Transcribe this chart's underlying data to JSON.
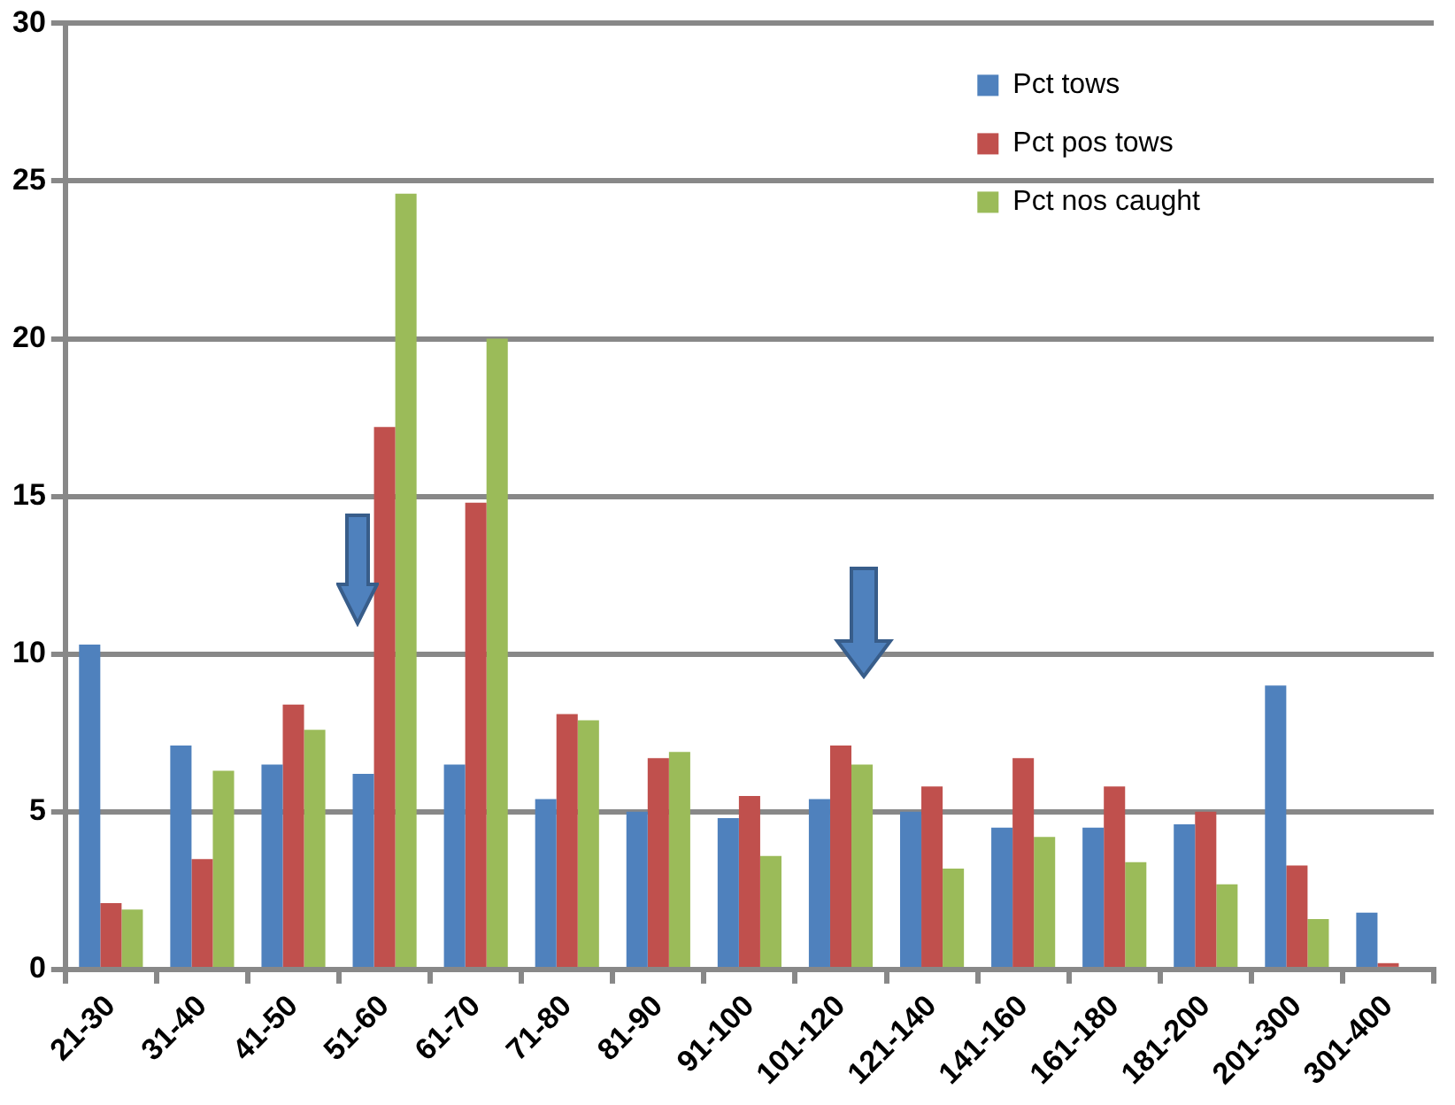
{
  "chart_data": {
    "type": "bar",
    "categories": [
      "21-30",
      "31-40",
      "41-50",
      "51-60",
      "61-70",
      "71-80",
      "81-90",
      "91-100",
      "101-120",
      "121-140",
      "141-160",
      "161-180",
      "181-200",
      "201-300",
      "301-400"
    ],
    "series": [
      {
        "name": "Pct tows",
        "color": "#4f81bd",
        "values": [
          10.3,
          7.1,
          6.5,
          6.2,
          6.5,
          5.4,
          5.0,
          4.8,
          5.4,
          5.0,
          4.5,
          4.5,
          4.6,
          9.0,
          1.8
        ]
      },
      {
        "name": "Pct pos tows",
        "color": "#c0504d",
        "values": [
          2.1,
          3.5,
          8.4,
          17.2,
          14.8,
          8.1,
          6.7,
          5.5,
          7.1,
          5.8,
          6.7,
          5.8,
          5.0,
          3.3,
          0.2
        ]
      },
      {
        "name": "Pct nos caught",
        "color": "#9bbb59",
        "values": [
          1.9,
          6.3,
          7.6,
          24.6,
          20.0,
          7.9,
          6.9,
          3.6,
          6.5,
          3.2,
          4.2,
          3.4,
          2.7,
          1.6,
          0
        ]
      }
    ],
    "ylim": [
      0,
      30
    ],
    "yticks": [
      0,
      5,
      10,
      15,
      20,
      25,
      30
    ],
    "grid": "y",
    "legend": "top right"
  }
}
